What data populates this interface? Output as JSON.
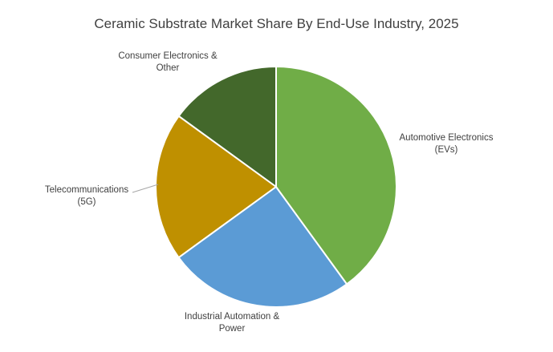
{
  "chart_data": {
    "type": "pie",
    "title": "Ceramic Substrate Market Share By End-Use Industry, 2025",
    "categories": [
      "Automotive Electronics (EVs)",
      "Industrial Automation & Power",
      "Telecommunications (5G)",
      "Consumer Electronics & Other"
    ],
    "values": [
      40,
      25,
      20,
      15
    ],
    "colors": [
      "#70ad47",
      "#5b9bd5",
      "#bf9000",
      "#43682b"
    ]
  }
}
